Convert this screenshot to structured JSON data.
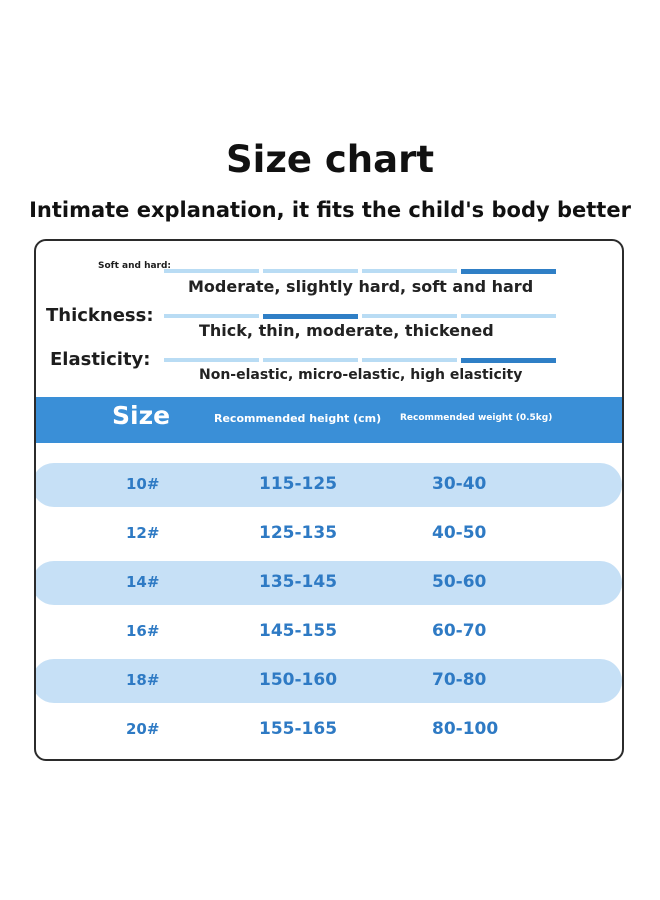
{
  "title": "Size chart",
  "subtitle": "Intimate explanation, it fits the child's body better",
  "attributes": {
    "softness": {
      "label": "Soft and hard:",
      "options": "Moderate, slightly hard, soft and hard",
      "active_segment": 4,
      "segments": 4
    },
    "thickness": {
      "label": "Thickness:",
      "options": "Thick, thin, moderate, thickened",
      "active_segment": 2,
      "segments": 4
    },
    "elasticity": {
      "label": "Elasticity:",
      "options": "Non-elastic, micro-elastic, high elasticity",
      "active_segment": 4,
      "segments": 4
    }
  },
  "table": {
    "headers": {
      "size": "Size",
      "height": "Recommended height (cm)",
      "weight": "Recommended weight (0.5kg)"
    },
    "rows": [
      {
        "size": "10#",
        "height": "115-125",
        "weight": "30-40"
      },
      {
        "size": "12#",
        "height": "125-135",
        "weight": "40-50"
      },
      {
        "size": "14#",
        "height": "135-145",
        "weight": "50-60"
      },
      {
        "size": "16#",
        "height": "145-155",
        "weight": "60-70"
      },
      {
        "size": "18#",
        "height": "150-160",
        "weight": "70-80"
      },
      {
        "size": "20#",
        "height": "155-165",
        "weight": "80-100"
      }
    ]
  },
  "colors": {
    "accent": "#3a8fd7",
    "scale_active": "#2f7fc6",
    "scale_inactive": "#b9dcf4",
    "row_shade": "#c6e0f6",
    "table_text": "#2e7ac4"
  }
}
